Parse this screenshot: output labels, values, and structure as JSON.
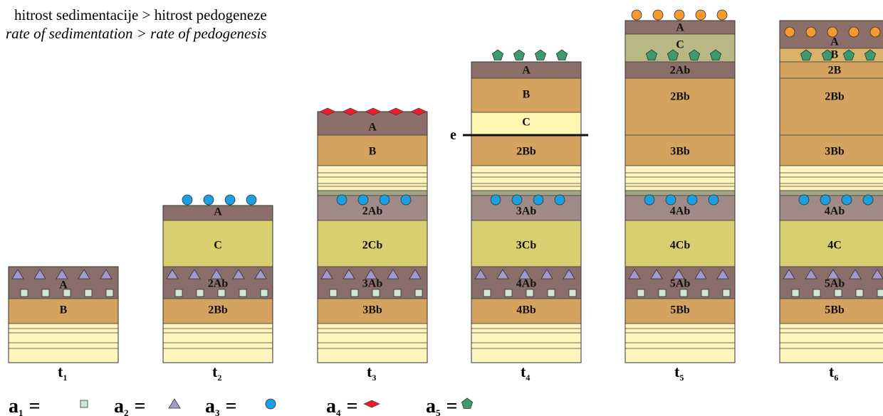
{
  "title": {
    "line1": "hitrost sedimentacije > hitrost pedogeneze",
    "line2": "rate of sedimentation > rate of pedogenesis"
  },
  "columns": [
    {
      "label": "t",
      "sub": "1",
      "layers": [
        "A",
        "B"
      ]
    },
    {
      "label": "t",
      "sub": "2",
      "layers": [
        "A",
        "C",
        "2Ab",
        "2Bb"
      ]
    },
    {
      "label": "t",
      "sub": "3",
      "layers": [
        "A",
        "B",
        "2Ab",
        "2Cb",
        "3Ab",
        "3Bb"
      ]
    },
    {
      "label": "t",
      "sub": "4",
      "layers": [
        "A",
        "B",
        "C",
        "2Bb",
        "3Ab",
        "3Cb",
        "4Ab",
        "4Bb"
      ]
    },
    {
      "label": "t",
      "sub": "5",
      "layers": [
        "A",
        "C",
        "2Ab",
        "2Bb",
        "3Bb",
        "4Ab",
        "4Cb",
        "5Ab",
        "5Bb"
      ]
    },
    {
      "label": "t",
      "sub": "6",
      "layers": [
        "A",
        "B",
        "2B",
        "2Bb",
        "3Bb",
        "4Ab",
        "4C",
        "5Ab",
        "5Bb"
      ]
    }
  ],
  "erosion_marker": "e",
  "legend": [
    {
      "symbol": "a",
      "sub": "1",
      "eq": "="
    },
    {
      "symbol": "a",
      "sub": "2",
      "eq": "="
    },
    {
      "symbol": "a",
      "sub": "3",
      "eq": "="
    },
    {
      "symbol": "a",
      "sub": "4",
      "eq": "="
    },
    {
      "symbol": "a",
      "sub": "5",
      "eq": "="
    }
  ]
}
